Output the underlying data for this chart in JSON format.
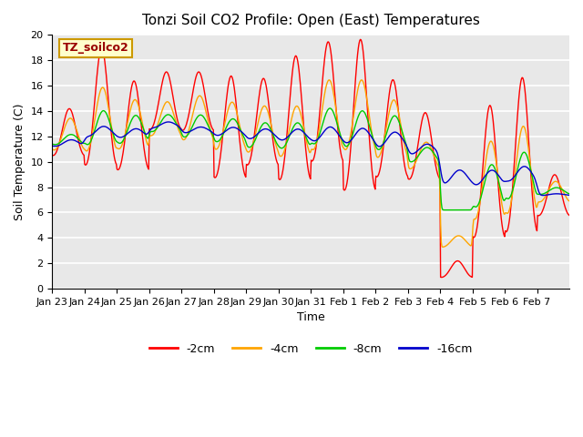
{
  "title": "Tonzi Soil CO2 Profile: Open (East) Temperatures",
  "xlabel": "Time",
  "ylabel": "Soil Temperature (C)",
  "ylim": [
    0,
    20
  ],
  "legend_label": "TZ_soilco2",
  "legend_bg": "#ffffcc",
  "legend_border": "#cc9900",
  "xtick_labels": [
    "Jan 23",
    "Jan 24",
    "Jan 25",
    "Jan 26",
    "Jan 27",
    "Jan 28",
    "Jan 29",
    "Jan 30",
    "Jan 31",
    "Feb 1",
    "Feb 2",
    "Feb 3",
    "Feb 4",
    "Feb 5",
    "Feb 6",
    "Feb 7"
  ],
  "bg_color": "#e8e8e8",
  "line_colors": [
    "#ff0000",
    "#ffa500",
    "#00cc00",
    "#0000cc"
  ],
  "line_labels": [
    "-2cm",
    "-4cm",
    "-8cm",
    "-16cm"
  ],
  "grid_color": "#ffffff",
  "title_fontsize": 11,
  "axis_fontsize": 9,
  "tick_fontsize": 8
}
